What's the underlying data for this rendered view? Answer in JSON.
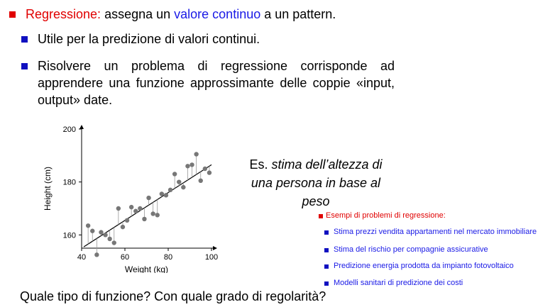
{
  "bullet1": {
    "term": "Regressione:",
    "text_a": " assegna un ",
    "highlight": "valore continuo",
    "text_b": " a un pattern."
  },
  "bullet2": "Utile per la predizione di valori continui.",
  "bullet3": "Risolvere un problema di regressione corrisponde ad apprendere una funzione approssimante delle coppie «input, output» date.",
  "example": {
    "prefix": "Es.",
    "italic": "stima dell’altezza di una persona in base al peso"
  },
  "examples_box": {
    "title": "Esempi di problemi di regressione:",
    "items": [
      "Stima prezzi vendita appartamenti nel mercato immobiliare",
      "Stima del rischio per compagnie assicurative",
      "Predizione energia prodotta da impianto fotovoltaico",
      "Modelli sanitari di predizione dei costi"
    ]
  },
  "question": "Quale tipo di funzione? Con quale grado di regolarità?",
  "colors": {
    "accent_red": "#e00000",
    "accent_blue": "#1a1ae6",
    "points": "#777777"
  },
  "chart_data": {
    "type": "scatter",
    "xlabel": "Weight (kg)",
    "ylabel": "Height (cm)",
    "xlim": [
      40,
      100
    ],
    "ylim": [
      155,
      200
    ],
    "xticks": [
      40,
      60,
      80,
      100
    ],
    "yticks": [
      160,
      180,
      200
    ],
    "regression_line": {
      "x": [
        41,
        100
      ],
      "y": [
        155.5,
        186.5
      ]
    },
    "points": [
      {
        "x": 43,
        "y": 163.5
      },
      {
        "x": 45,
        "y": 161.5
      },
      {
        "x": 47,
        "y": 152.5
      },
      {
        "x": 49,
        "y": 161
      },
      {
        "x": 51,
        "y": 160
      },
      {
        "x": 53,
        "y": 158.5
      },
      {
        "x": 55,
        "y": 157
      },
      {
        "x": 57,
        "y": 170
      },
      {
        "x": 59,
        "y": 163
      },
      {
        "x": 61,
        "y": 165.5
      },
      {
        "x": 63,
        "y": 170.5
      },
      {
        "x": 65,
        "y": 169
      },
      {
        "x": 67,
        "y": 170
      },
      {
        "x": 69,
        "y": 166
      },
      {
        "x": 71,
        "y": 174
      },
      {
        "x": 73,
        "y": 168
      },
      {
        "x": 75,
        "y": 167.5
      },
      {
        "x": 77,
        "y": 175.5
      },
      {
        "x": 79,
        "y": 175
      },
      {
        "x": 81,
        "y": 177
      },
      {
        "x": 83,
        "y": 183
      },
      {
        "x": 85,
        "y": 180
      },
      {
        "x": 87,
        "y": 178
      },
      {
        "x": 89,
        "y": 186
      },
      {
        "x": 91,
        "y": 186.5
      },
      {
        "x": 93,
        "y": 190.5
      },
      {
        "x": 95,
        "y": 180.5
      },
      {
        "x": 97,
        "y": 185
      },
      {
        "x": 99,
        "y": 183.5
      }
    ],
    "grid": false
  }
}
